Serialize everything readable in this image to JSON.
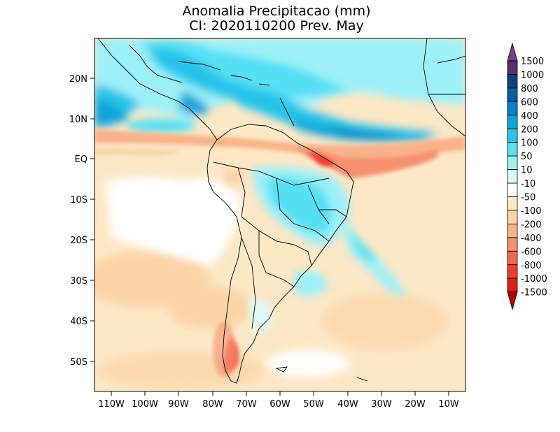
{
  "title_line1": "Anomalia Precipitacao (mm)",
  "title_line2": "CI: 2020110200 Prev. May",
  "lon_ticks": [
    "110W",
    "100W",
    "90W",
    "80W",
    "70W",
    "60W",
    "50W",
    "40W",
    "30W",
    "20W",
    "10W"
  ],
  "lat_ticks": [
    "20N",
    "10N",
    "EQ",
    "10S",
    "20S",
    "30S",
    "40S",
    "50S"
  ],
  "colorbar": {
    "labels": [
      "1500",
      "1000",
      "800",
      "600",
      "400",
      "200",
      "100",
      "50",
      "10",
      "-10",
      "-50",
      "-100",
      "-200",
      "-400",
      "-600",
      "-800",
      "-1000",
      "-1500"
    ],
    "colors": [
      "#7a3d8f",
      "#5a2d6c",
      "#0f3f7c",
      "#0a5aa8",
      "#0a80c8",
      "#11a3dc",
      "#28c4ea",
      "#55e0f4",
      "#9ef0f8",
      "#dcfbfb",
      "#ffffff",
      "#fde8c6",
      "#fbd4a6",
      "#f9b38a",
      "#f59070",
      "#f2664c",
      "#ef3c2c",
      "#e21c12",
      "#cc1008",
      "#b40000"
    ]
  },
  "map": {
    "projection": "lat-lon",
    "lon_range": [
      "115W",
      "5W"
    ],
    "lat_range": [
      "58S",
      "30N"
    ]
  }
}
